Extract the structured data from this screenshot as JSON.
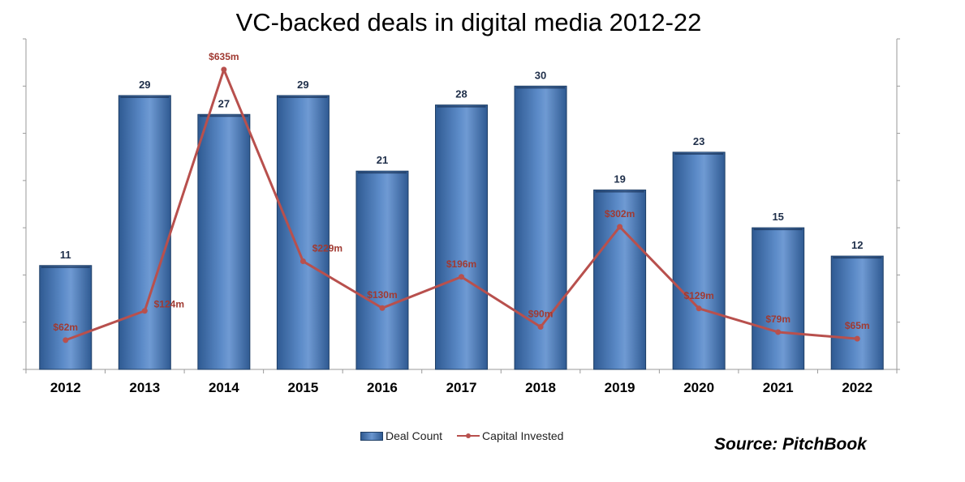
{
  "title": "VC-backed deals in digital media 2012-22",
  "source": "Source: PitchBook",
  "colors": {
    "bar": "#4f81bd",
    "bar_dark": "#2f5a92",
    "bar_light": "#7ba3d8",
    "line": "#b8504d",
    "bar_label": "#1f2f4a",
    "line_label": "#a03a32",
    "axis": "#9a9a9a"
  },
  "chart_data": {
    "type": "bar",
    "title": "VC-backed deals in digital media 2012-22",
    "xlabel": "",
    "ylabel": "",
    "categories": [
      "2012",
      "2013",
      "2014",
      "2015",
      "2016",
      "2017",
      "2018",
      "2019",
      "2020",
      "2021",
      "2022"
    ],
    "series": [
      {
        "name": "Deal Count",
        "type": "bar",
        "axis": "primary",
        "values": [
          11,
          29,
          27,
          29,
          21,
          28,
          30,
          19,
          23,
          15,
          12
        ],
        "labels": [
          "11",
          "29",
          "27",
          "29",
          "21",
          "28",
          "30",
          "19",
          "23",
          "15",
          "12"
        ]
      },
      {
        "name": "Capital Invested",
        "type": "line",
        "axis": "secondary",
        "unit": "$m",
        "values": [
          62,
          124,
          635,
          229,
          130,
          196,
          90,
          302,
          129,
          79,
          65
        ],
        "labels": [
          "$62m",
          "$124m",
          "$635m",
          "$229m",
          "$130m",
          "$196m",
          "$90m",
          "$302m",
          "$129m",
          "$79m",
          "$65m"
        ]
      }
    ],
    "ylim": [
      0,
      35
    ],
    "y2lim": [
      0,
      700
    ],
    "grid": false,
    "legend": "bottom"
  }
}
